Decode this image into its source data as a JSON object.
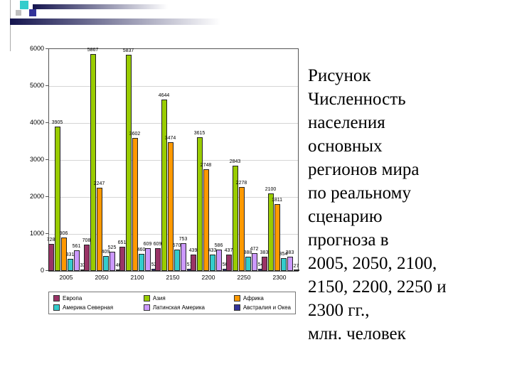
{
  "slide": {
    "caption": "Рисунок\nЧисленность\nнаселения\nосновных\nрегионов мира\nпо реальному\nсценарию\nпрогноза в\n2005, 2050, 2100,\n2150, 2200, 2250 и\n2300 гг.,\nмлн. человек"
  },
  "chart_data": {
    "type": "bar",
    "title": "",
    "xlabel": "",
    "ylabel": "",
    "categories": [
      "2005",
      "2050",
      "2100",
      "2150",
      "2200",
      "2250",
      "2300"
    ],
    "series": [
      {
        "name": "Европа",
        "color": "#993366",
        "values": [
          728,
          708,
          651,
          609,
          439,
          437,
          383
        ]
      },
      {
        "name": "Азия",
        "color": "#99CC00",
        "values": [
          3905,
          5867,
          5837,
          4644,
          3615,
          2843,
          2100
        ]
      },
      {
        "name": "Африка",
        "color": "#FF9900",
        "values": [
          906,
          2247,
          3602,
          3474,
          2748,
          2278,
          1811
        ]
      },
      {
        "name": "Америка Северная",
        "color": "#33CCCC",
        "values": [
          331,
          409,
          460,
          570,
          433,
          388,
          354
        ]
      },
      {
        "name": "Латинская Америка",
        "color": "#CC99FF",
        "values": [
          561,
          525,
          609,
          753,
          586,
          472,
          383
        ]
      },
      {
        "name": "Австралия и Океания",
        "color": "#333399",
        "values": [
          33,
          46,
          52,
          57,
          56,
          54,
          27
        ]
      }
    ],
    "ylim": [
      0,
      6000
    ],
    "yticks": [
      0,
      1000,
      2000,
      3000,
      4000,
      5000,
      6000
    ],
    "grid": true,
    "legend_position": "bottom",
    "data_labels": true
  },
  "colors": {
    "deco_stripe_dark": "#14144E",
    "deco_square_cyan": "#33CCCC",
    "deco_square_navy": "#333399"
  }
}
